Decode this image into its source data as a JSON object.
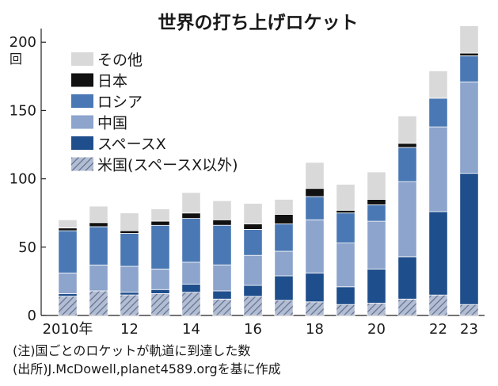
{
  "chart_data": {
    "type": "bar",
    "stacked": true,
    "title": "世界の打ち上げロケット",
    "y_unit": "回",
    "ylim": [
      0,
      210
    ],
    "yticks": [
      0,
      50,
      100,
      150,
      200
    ],
    "grid": false,
    "legend_position": "top-left",
    "x": [
      2010,
      2011,
      2012,
      2013,
      2014,
      2015,
      2016,
      2017,
      2018,
      2019,
      2020,
      2021,
      2022,
      2023
    ],
    "x_tick_labels": [
      "2010年",
      "",
      "12",
      "",
      "14",
      "",
      "16",
      "",
      "18",
      "",
      "20",
      "",
      "22",
      "23"
    ],
    "series": [
      {
        "name": "米国(スペースX以外)",
        "color": "#9aa6bf",
        "pattern": "hatch",
        "values": [
          14,
          18,
          15,
          16,
          17,
          12,
          14,
          11,
          10,
          8,
          9,
          12,
          15,
          8
        ]
      },
      {
        "name": "スペースX",
        "color": "#1f4e8c",
        "values": [
          2,
          0,
          2,
          3,
          6,
          6,
          8,
          18,
          21,
          13,
          25,
          31,
          61,
          96
        ]
      },
      {
        "name": "中国",
        "color": "#8da4cc",
        "values": [
          15,
          19,
          19,
          15,
          16,
          19,
          22,
          18,
          39,
          32,
          35,
          55,
          62,
          67
        ]
      },
      {
        "name": "ロシア",
        "color": "#4a78b4",
        "values": [
          31,
          28,
          24,
          32,
          32,
          29,
          19,
          20,
          17,
          22,
          12,
          25,
          21,
          19
        ]
      },
      {
        "name": "日本",
        "color": "#111111",
        "values": [
          2,
          3,
          2,
          3,
          4,
          4,
          4,
          7,
          6,
          2,
          4,
          3,
          0,
          2
        ]
      },
      {
        "name": "その他",
        "color": "#d9d9d9",
        "values": [
          6,
          12,
          13,
          9,
          15,
          14,
          15,
          11,
          19,
          19,
          20,
          20,
          20,
          20
        ]
      }
    ],
    "legend_order": [
      "その他",
      "日本",
      "ロシア",
      "中国",
      "スペースX",
      "米国(スペースX以外)"
    ],
    "notes": [
      "(注)国ごとのロケットが軌道に到達した数",
      "(出所)J.McDowell,planet4589.orgを基に作成"
    ]
  }
}
